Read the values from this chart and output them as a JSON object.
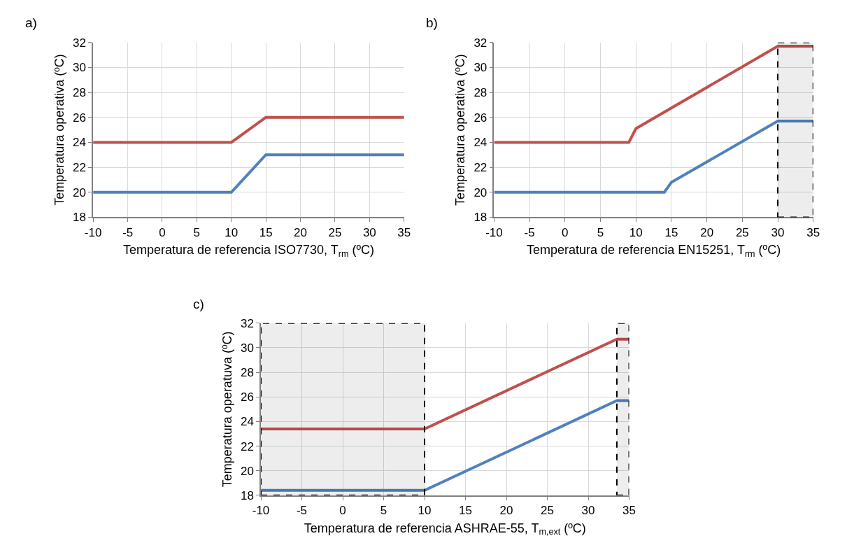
{
  "chart_data": [
    {
      "type": "line",
      "annotations": [
        "a)"
      ],
      "xlabel": "Temperatura de referencia ISO7730, T$_{rm}$ (ºC)",
      "ylabel": "Temperatura operativa (ºC)",
      "xlim": [
        -10,
        35
      ],
      "xticks": [
        -10,
        -5,
        0,
        5,
        10,
        15,
        20,
        25,
        30,
        35
      ],
      "ylim": [
        18,
        32
      ],
      "yticks": [
        18,
        20,
        22,
        24,
        26,
        28,
        30,
        32
      ],
      "grid": true,
      "series": [
        {
          "color": "#c0504d",
          "x": [
            -10,
            10,
            15,
            35
          ],
          "values": [
            24,
            24,
            26,
            26
          ]
        },
        {
          "color": "#4f81bd",
          "x": [
            -10,
            10,
            15,
            35
          ],
          "values": [
            20,
            20,
            23,
            23
          ]
        }
      ]
    },
    {
      "type": "line",
      "annotations": [
        "b)"
      ],
      "xlabel": "Temperatura de referencia EN15251, T$_{rm}$ (ºC)",
      "ylabel": "Temperatura operativa (ºC)",
      "xlim": [
        -10,
        35
      ],
      "xticks": [
        -10,
        -5,
        0,
        5,
        10,
        15,
        20,
        25,
        30,
        35
      ],
      "ylim": [
        18,
        32
      ],
      "yticks": [
        18,
        20,
        22,
        24,
        26,
        28,
        30,
        32
      ],
      "grid": true,
      "bands": [
        {
          "axis": "x",
          "from": 30,
          "to": 35,
          "color": "#000000"
        }
      ],
      "series": [
        {
          "color": "#c0504d",
          "x": [
            -10,
            9,
            10,
            30,
            35
          ],
          "values": [
            24,
            24,
            25.1,
            31.7,
            31.7
          ]
        },
        {
          "color": "#4f81bd",
          "x": [
            -10,
            14,
            15,
            30,
            35
          ],
          "values": [
            20,
            20,
            20.8,
            25.7,
            25.7
          ]
        }
      ]
    },
    {
      "type": "line",
      "annotations": [
        "c)"
      ],
      "xlabel": "Temperatura de referencia ASHRAE-55, T$_{m,ext}$ (ºC)",
      "ylabel": "Temperatura operatuva (ºC)",
      "xlim": [
        -10,
        35
      ],
      "xticks": [
        -10,
        -5,
        0,
        5,
        10,
        15,
        20,
        25,
        30,
        35
      ],
      "ylim": [
        18,
        32
      ],
      "yticks": [
        18,
        20,
        22,
        24,
        26,
        28,
        30,
        32
      ],
      "grid": true,
      "bands": [
        {
          "axis": "x",
          "from": -10,
          "to": 10,
          "color": "#000000"
        },
        {
          "axis": "x",
          "from": 33.5,
          "to": 35,
          "color": "#000000"
        }
      ],
      "series": [
        {
          "color": "#c0504d",
          "x": [
            -10,
            10,
            33.5,
            35
          ],
          "values": [
            23.4,
            23.4,
            30.7,
            30.7
          ]
        },
        {
          "color": "#4f81bd",
          "x": [
            -10,
            10,
            33.5,
            35
          ],
          "values": [
            18.4,
            18.4,
            25.7,
            25.7
          ]
        }
      ]
    }
  ]
}
